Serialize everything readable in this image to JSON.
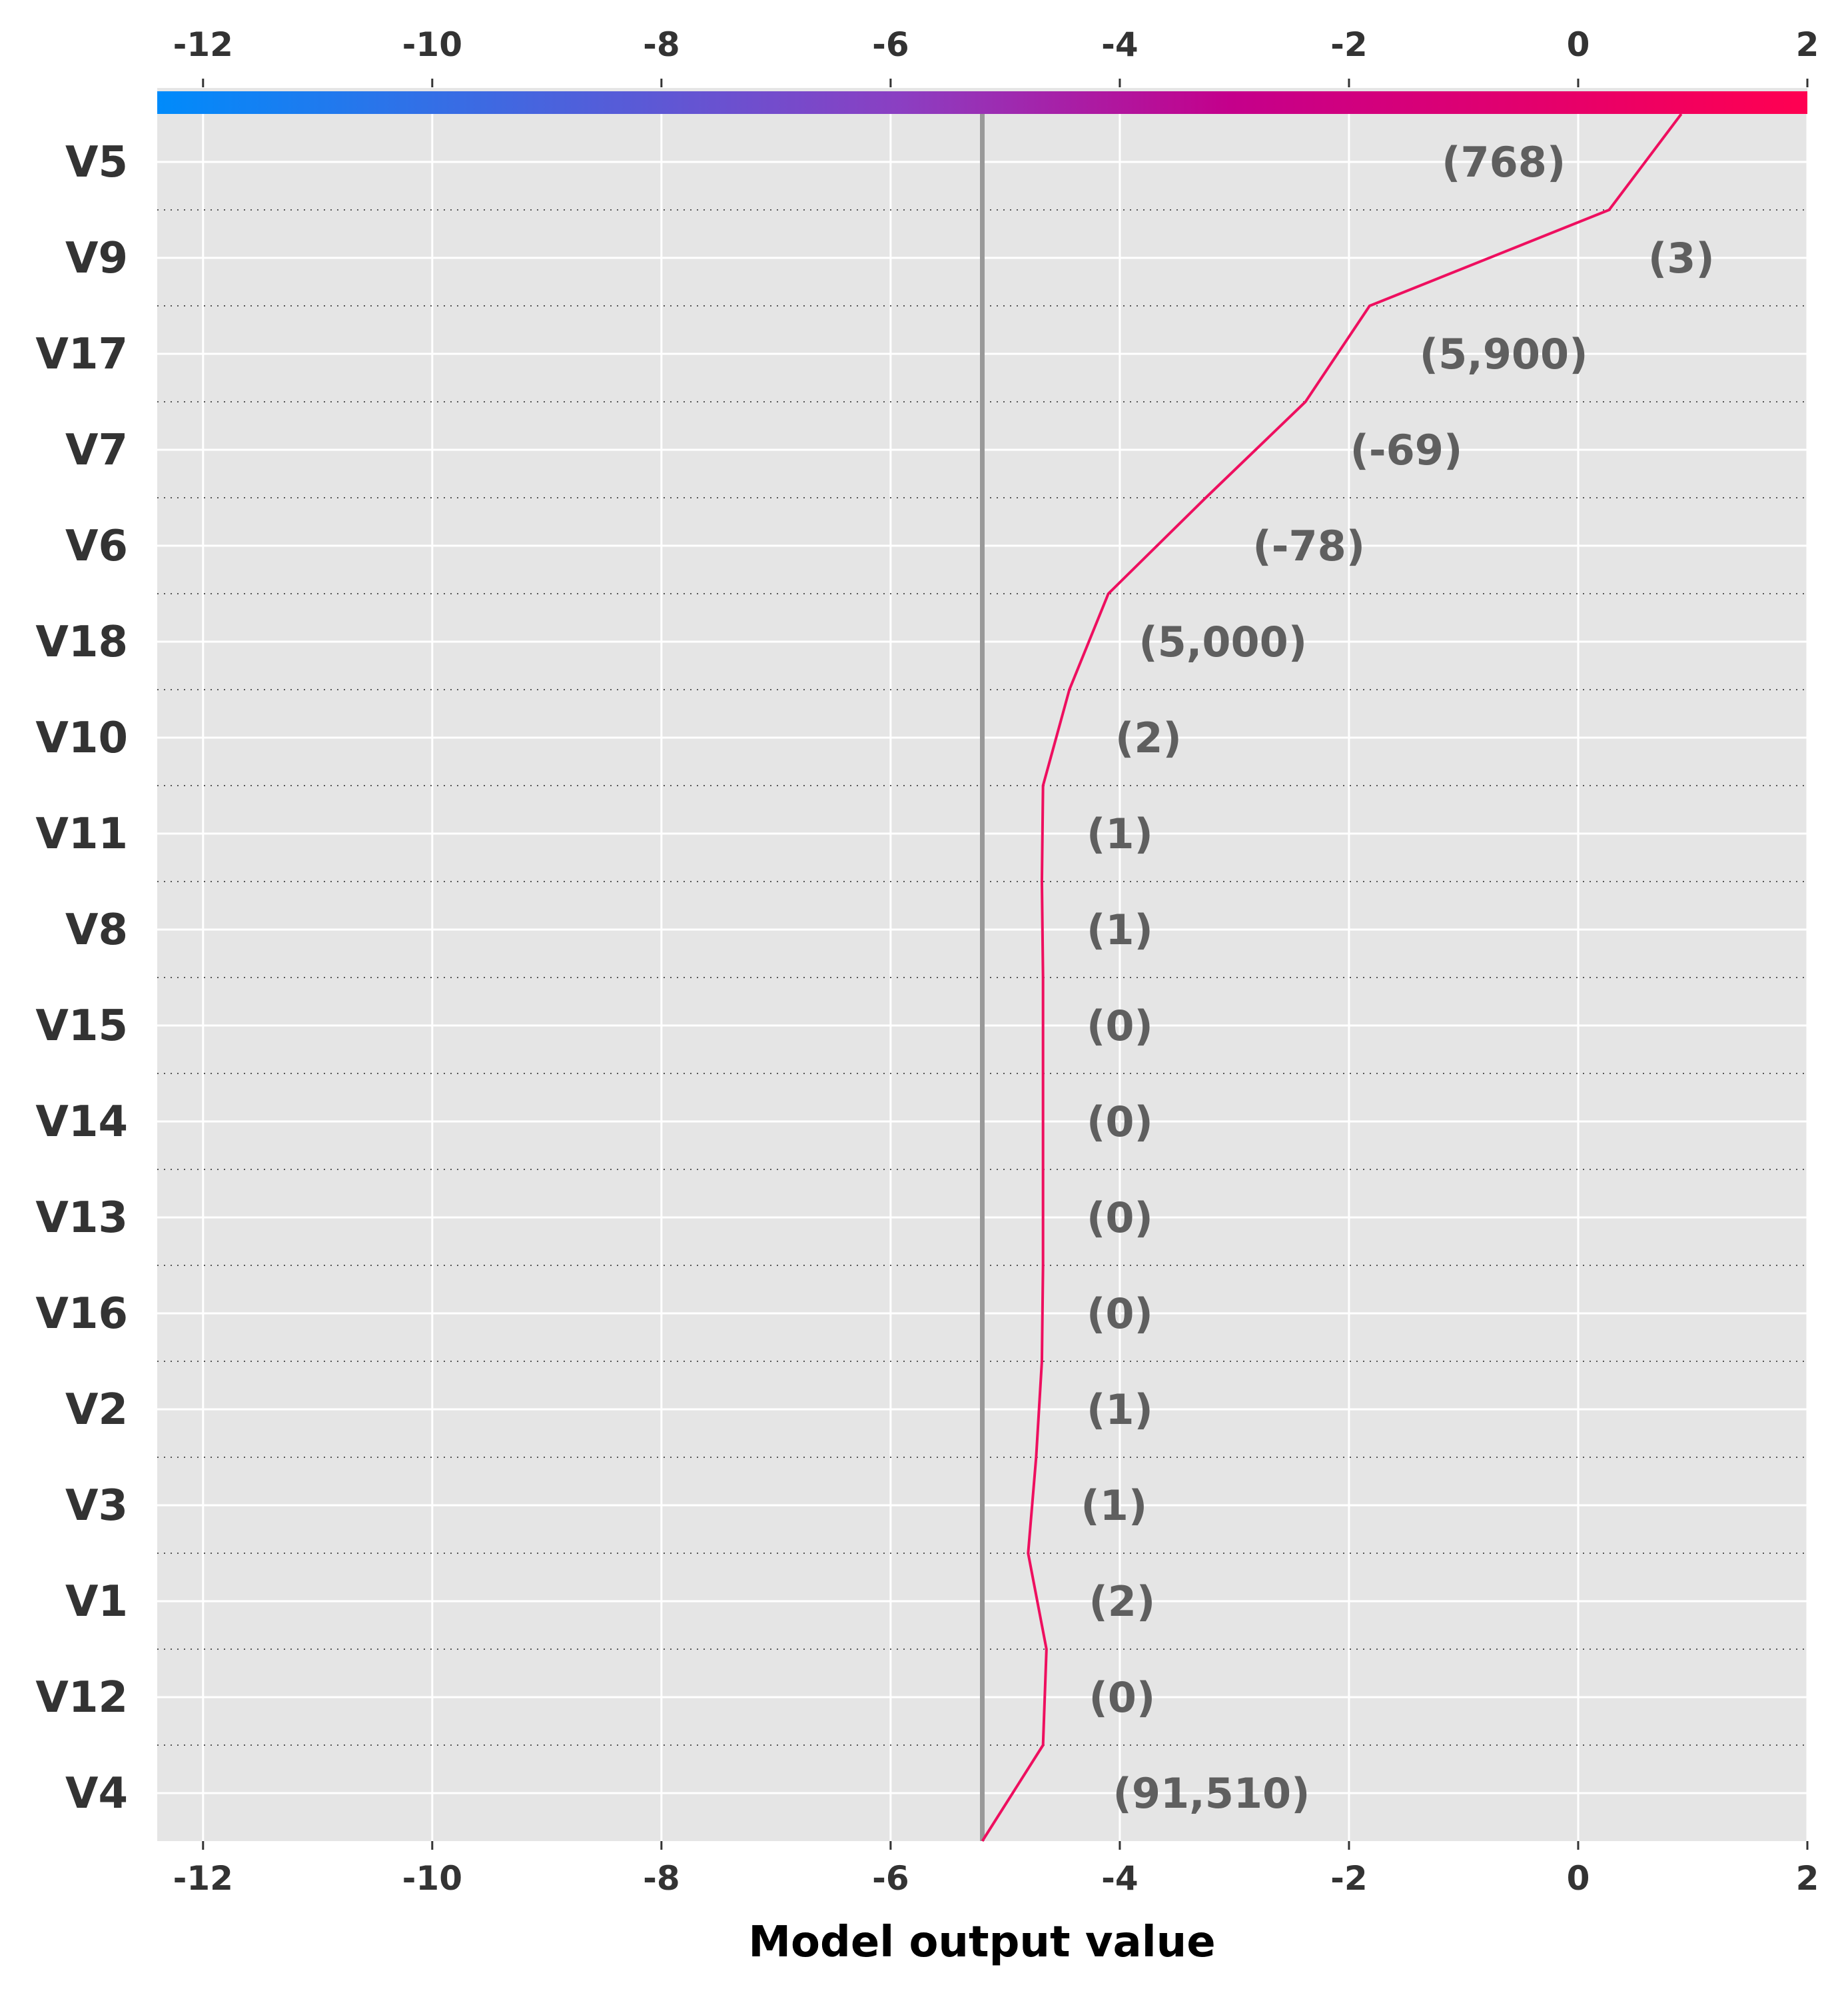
{
  "chart_data": {
    "type": "line",
    "xlabel": "Model output value",
    "xlim": [
      -12.4,
      2
    ],
    "xticks": [
      -12,
      -10,
      -8,
      -6,
      -4,
      -2,
      0,
      2
    ],
    "xtick_labels": [
      "-12",
      "-10",
      "-8",
      "-6",
      "-4",
      "-2",
      "0",
      "2"
    ],
    "base_value": -5.2,
    "features": [
      "V5",
      "V9",
      "V17",
      "V7",
      "V6",
      "V18",
      "V10",
      "V11",
      "V8",
      "V15",
      "V14",
      "V13",
      "V16",
      "V2",
      "V3",
      "V1",
      "V12",
      "V4"
    ],
    "feature_values": [
      "(768)",
      "(3)",
      "(5,900)",
      "(-69)",
      "(-78)",
      "(5,000)",
      "(2)",
      "(1)",
      "(1)",
      "(0)",
      "(0)",
      "(0)",
      "(0)",
      "(1)",
      "(1)",
      "(2)",
      "(0)",
      "(91,510)"
    ],
    "path_x": [
      0.9,
      0.27,
      -1.82,
      -2.38,
      -3.25,
      -4.1,
      -4.44,
      -4.67,
      -4.68,
      -4.67,
      -4.67,
      -4.67,
      -4.67,
      -4.68,
      -4.73,
      -4.8,
      -4.64,
      -4.67,
      -5.2
    ],
    "label_x": [
      -0.65,
      0.9,
      -0.65,
      -1.5,
      -2.35,
      -3.1,
      -3.75,
      -4.0,
      -4.0,
      -4.0,
      -4.0,
      -4.0,
      -4.0,
      -4.0,
      -4.05,
      -3.98,
      -3.98,
      -3.2
    ],
    "grid": true,
    "colorbar": {
      "low_color": "#008bfb",
      "mid_color": "#8b3fc2",
      "high_color": "#ff0051"
    },
    "line_color": "#ee0f5f",
    "base_line_color": "#999999",
    "background_color": "#e5e5e5"
  }
}
